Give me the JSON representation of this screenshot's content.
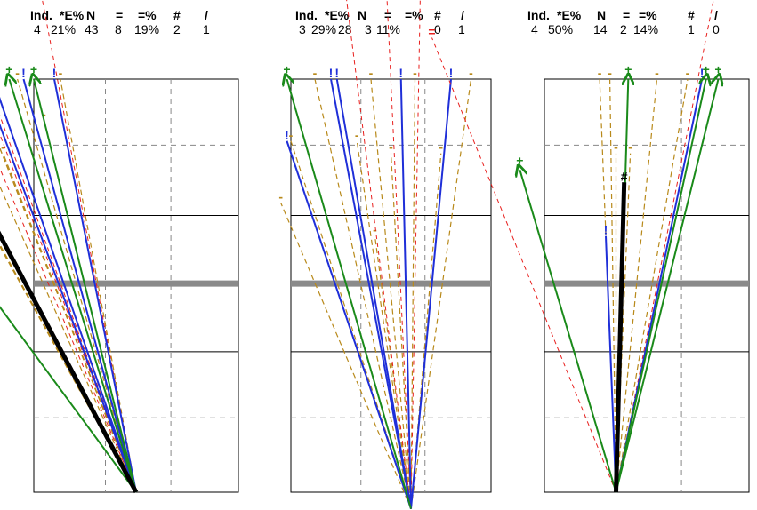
{
  "chart_data": [
    {
      "type": "scatter",
      "header": {
        "columns": [
          "Ind.",
          "*E%",
          "N",
          "=",
          "=%",
          "#",
          "/"
        ],
        "values": [
          "4",
          "21%",
          "43",
          "8",
          "19%",
          "2",
          "1"
        ]
      },
      "legend_marks": {
        "equal": "=",
        "plus": "+",
        "bang": "!",
        "hash": "#",
        "dash": "-"
      },
      "colors": {
        "equal": "#e8201e",
        "plus": "#1a8a1a",
        "bang": "#1f2fd8",
        "hash": "#000000",
        "dash": "#b8891a",
        "grid": "#888888",
        "center": "#8a8a8a"
      },
      "origin": [
        0.5,
        0
      ],
      "rays": [
        {
          "kind": "hash",
          "end": [
            -0.57,
            1.0
          ]
        },
        {
          "kind": "plus",
          "end": [
            -0.57,
            0.72
          ]
        },
        {
          "kind": "bang",
          "end": [
            -0.25,
            1.0
          ]
        },
        {
          "kind": "bang",
          "end": [
            -0.2,
            1.0
          ]
        },
        {
          "kind": "plus",
          "end": [
            -0.12,
            1.0
          ]
        },
        {
          "kind": "bang",
          "end": [
            -0.05,
            1.0
          ]
        },
        {
          "kind": "plus",
          "end": [
            0.0,
            1.0
          ]
        },
        {
          "kind": "bang",
          "end": [
            0.1,
            1.0
          ]
        },
        {
          "kind": "equal",
          "end": [
            -0.5,
            1.3
          ]
        },
        {
          "kind": "equal",
          "end": [
            -0.45,
            1.3
          ]
        },
        {
          "kind": "equal",
          "end": [
            -0.35,
            1.0
          ]
        },
        {
          "kind": "equal",
          "end": [
            0.0,
            1.3
          ]
        },
        {
          "kind": "dash",
          "end": [
            -0.62,
            1.0
          ]
        },
        {
          "kind": "dash",
          "end": [
            -0.5,
            0.9
          ]
        },
        {
          "kind": "dash",
          "end": [
            -0.4,
            1.0
          ]
        },
        {
          "kind": "dash",
          "end": [
            -0.3,
            1.0
          ]
        },
        {
          "kind": "dash",
          "end": [
            -0.22,
            0.9
          ]
        },
        {
          "kind": "dash",
          "end": [
            -0.15,
            0.82
          ]
        },
        {
          "kind": "dash",
          "end": [
            -0.08,
            1.0
          ]
        },
        {
          "kind": "dash",
          "end": [
            0.05,
            0.9
          ]
        },
        {
          "kind": "dash",
          "end": [
            0.13,
            1.0
          ]
        }
      ]
    },
    {
      "type": "scatter",
      "header": {
        "columns": [
          "Ind.",
          "*E%",
          "N",
          "=",
          "=%",
          "#",
          "/"
        ],
        "values": [
          "3",
          "29%",
          "28",
          "3",
          "11%",
          "0",
          "1"
        ]
      },
      "legend_marks": {
        "equal": "=",
        "plus": "+",
        "bang": "!",
        "hash": "#",
        "dash": "-"
      },
      "colors": {
        "equal": "#e8201e",
        "plus": "#1a8a1a",
        "bang": "#1f2fd8",
        "hash": "#000000",
        "dash": "#b8891a",
        "grid": "#888888",
        "center": "#8a8a8a"
      },
      "origin": [
        0.6,
        -0.04
      ],
      "rays": [
        {
          "kind": "plus",
          "end": [
            -0.02,
            1.0
          ]
        },
        {
          "kind": "bang",
          "end": [
            -0.02,
            0.85
          ]
        },
        {
          "kind": "bang",
          "end": [
            0.2,
            1.0
          ]
        },
        {
          "kind": "bang",
          "end": [
            0.23,
            1.0
          ]
        },
        {
          "kind": "bang",
          "end": [
            0.55,
            1.0
          ]
        },
        {
          "kind": "bang",
          "end": [
            0.8,
            1.0
          ]
        },
        {
          "kind": "equal",
          "end": [
            0.25,
            1.3
          ]
        },
        {
          "kind": "equal",
          "end": [
            0.47,
            1.3
          ]
        },
        {
          "kind": "equal",
          "end": [
            0.65,
            1.3
          ]
        },
        {
          "kind": "dash",
          "end": [
            -0.05,
            0.7
          ]
        },
        {
          "kind": "dash",
          "end": [
            0.0,
            0.85
          ]
        },
        {
          "kind": "dash",
          "end": [
            0.12,
            1.0
          ]
        },
        {
          "kind": "dash",
          "end": [
            0.33,
            0.85
          ]
        },
        {
          "kind": "dash",
          "end": [
            0.4,
            1.0
          ]
        },
        {
          "kind": "dash",
          "end": [
            0.42,
            0.62
          ]
        },
        {
          "kind": "dash",
          "end": [
            0.5,
            0.82
          ]
        },
        {
          "kind": "dash",
          "end": [
            0.62,
            1.0
          ]
        },
        {
          "kind": "dash",
          "end": [
            0.75,
            0.82
          ]
        },
        {
          "kind": "dash",
          "end": [
            0.9,
            1.0
          ]
        }
      ]
    },
    {
      "type": "scatter",
      "header": {
        "columns": [
          "Ind.",
          "*E%",
          "N",
          "=",
          "=%",
          "#",
          "/"
        ],
        "values": [
          "4",
          "50%",
          "14",
          "2",
          "14%",
          "1",
          "0"
        ]
      },
      "legend_marks": {
        "equal": "=",
        "plus": "+",
        "bang": "!",
        "hash": "#",
        "dash": "-"
      },
      "colors": {
        "equal": "#e8201e",
        "plus": "#1a8a1a",
        "bang": "#1f2fd8",
        "hash": "#000000",
        "dash": "#b8891a",
        "grid": "#888888",
        "center": "#8a8a8a"
      },
      "origin": [
        0.35,
        0.0
      ],
      "rays": [
        {
          "kind": "hash",
          "end": [
            0.39,
            0.75
          ]
        },
        {
          "kind": "plus",
          "end": [
            -0.12,
            0.78
          ]
        },
        {
          "kind": "plus",
          "end": [
            0.41,
            1.0
          ]
        },
        {
          "kind": "plus",
          "end": [
            0.79,
            1.0
          ]
        },
        {
          "kind": "plus",
          "end": [
            0.85,
            1.0
          ]
        },
        {
          "kind": "bang",
          "end": [
            0.77,
            1.0
          ]
        },
        {
          "kind": "bang",
          "end": [
            0.3,
            0.62
          ]
        },
        {
          "kind": "equal",
          "end": [
            -0.55,
            1.1
          ]
        },
        {
          "kind": "equal",
          "end": [
            0.87,
            1.3
          ]
        },
        {
          "kind": "dash",
          "end": [
            0.27,
            1.0
          ]
        },
        {
          "kind": "dash",
          "end": [
            0.32,
            1.0
          ]
        },
        {
          "kind": "dash",
          "end": [
            0.35,
            0.82
          ]
        },
        {
          "kind": "dash",
          "end": [
            0.42,
            0.82
          ]
        },
        {
          "kind": "dash",
          "end": [
            0.55,
            1.0
          ]
        },
        {
          "kind": "dash",
          "end": [
            0.7,
            1.0
          ]
        }
      ]
    }
  ]
}
